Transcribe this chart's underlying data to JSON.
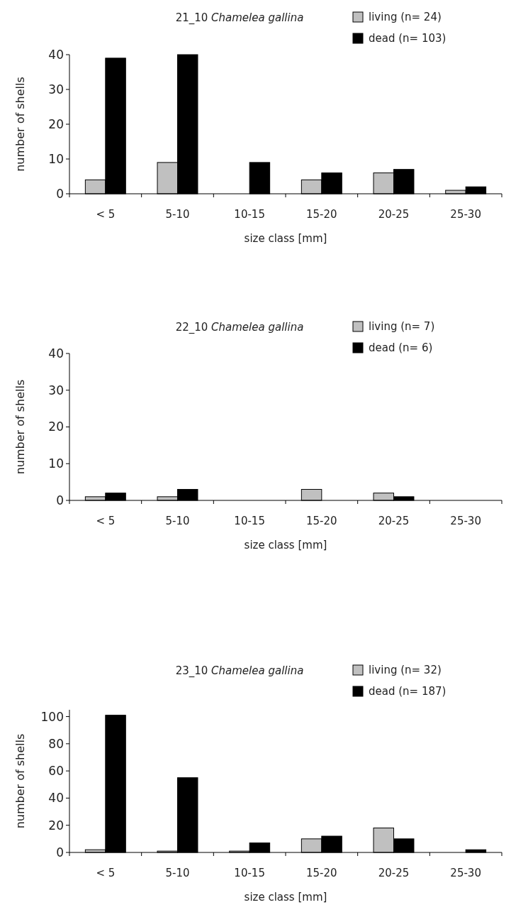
{
  "chart_data": [
    {
      "type": "bar",
      "title": "21_10 Chamelea gallina",
      "xlabel": "size class [mm]",
      "ylabel": "number of shells",
      "categories": [
        "< 5",
        "5-10",
        "10-15",
        "15-20",
        "20-25",
        "25-30"
      ],
      "series": [
        {
          "name": "living (n= 24)",
          "color": "#c0c0c0",
          "values": [
            4,
            9,
            0,
            4,
            6,
            1
          ]
        },
        {
          "name": "dead (n= 103)",
          "color": "#000000",
          "values": [
            39,
            40,
            9,
            6,
            7,
            2
          ]
        }
      ],
      "ylim": [
        0,
        40
      ],
      "yticks": [
        0,
        10,
        20,
        30,
        40
      ],
      "legend": "top right",
      "grid": false
    },
    {
      "type": "bar",
      "title": "22_10 Chamelea gallina",
      "xlabel": "size class [mm]",
      "ylabel": "number of shells",
      "categories": [
        "< 5",
        "5-10",
        "10-15",
        "15-20",
        "20-25",
        "25-30"
      ],
      "series": [
        {
          "name": "living (n= 7)",
          "color": "#c0c0c0",
          "values": [
            1,
            1,
            0,
            3,
            2,
            0
          ]
        },
        {
          "name": "dead (n= 6)",
          "color": "#000000",
          "values": [
            2,
            3,
            0,
            0,
            1,
            0
          ]
        }
      ],
      "ylim": [
        0,
        40
      ],
      "yticks": [
        0,
        10,
        20,
        30,
        40
      ],
      "legend": "top right",
      "grid": false
    },
    {
      "type": "bar",
      "title": "23_10 Chamelea gallina",
      "xlabel": "size class [mm]",
      "ylabel": "number of shells",
      "categories": [
        "< 5",
        "5-10",
        "10-15",
        "15-20",
        "20-25",
        "25-30"
      ],
      "series": [
        {
          "name": "living (n= 32)",
          "color": "#c0c0c0",
          "values": [
            2,
            1,
            1,
            10,
            18,
            0
          ]
        },
        {
          "name": "dead (n= 187)",
          "color": "#000000",
          "values": [
            101,
            55,
            7,
            12,
            10,
            2
          ]
        }
      ],
      "ylim": [
        0,
        105
      ],
      "yticks": [
        0,
        20,
        40,
        60,
        80,
        100
      ],
      "legend": "top right",
      "grid": false
    }
  ]
}
